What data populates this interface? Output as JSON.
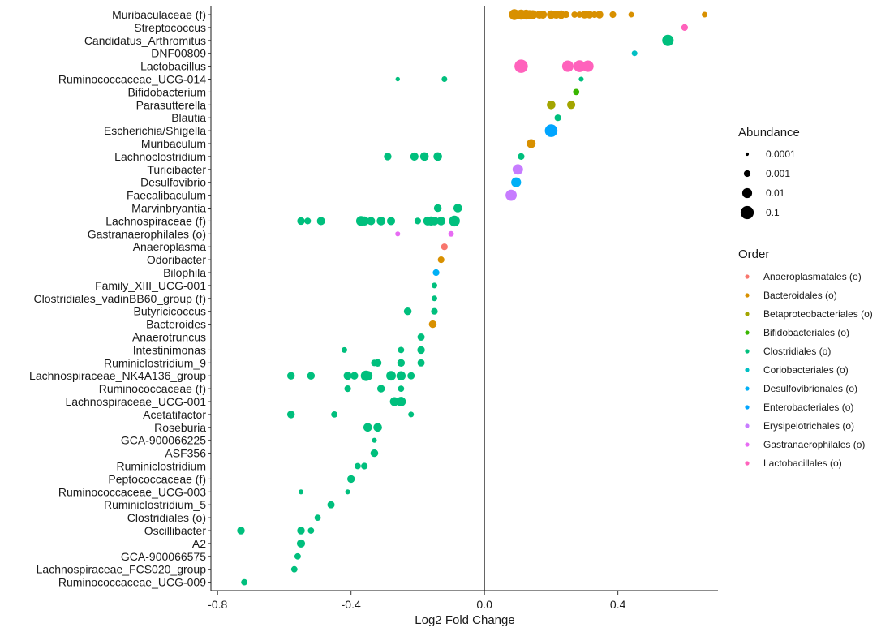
{
  "chart_data": {
    "type": "scatter",
    "xlabel": "Log2 Fold Change",
    "ylabel": "",
    "xlim": [
      -0.82,
      0.7
    ],
    "xticks": [
      "-0.8",
      "-0.4",
      "0.0",
      "0.4"
    ],
    "xtick_values": [
      -0.8,
      -0.4,
      0.0,
      0.4
    ],
    "vline_x": 0,
    "grid": false,
    "legend_position": "right",
    "categories": [
      "Muribaculaceae (f)",
      "Streptococcus",
      "Candidatus_Arthromitus",
      "DNF00809",
      "Lactobacillus",
      "Ruminococcaceae_UCG-014",
      "Bifidobacterium",
      "Parasutterella",
      "Blautia",
      "Escherichia/Shigella",
      "Muribaculum",
      "Lachnoclostridium",
      "Turicibacter",
      "Desulfovibrio",
      "Faecalibaculum",
      "Marvinbryantia",
      "Lachnospiraceae (f)",
      "Gastranaerophilales (o)",
      "Anaeroplasma",
      "Odoribacter",
      "Bilophila",
      "Family_XIII_UCG-001",
      "Clostridiales_vadinBB60_group (f)",
      "Butyricicoccus",
      "Bacteroides",
      "Anaerotruncus",
      "Intestinimonas",
      "Ruminiclostridium_9",
      "Lachnospiraceae_NK4A136_group",
      "Ruminococcaceae (f)",
      "Lachnospiraceae_UCG-001",
      "Acetatifactor",
      "Roseburia",
      "GCA-900066225",
      "ASF356",
      "Ruminiclostridium",
      "Peptococcaceae (f)",
      "Ruminococcaceae_UCG-003",
      "Ruminiclostridium_5",
      "Clostridiales (o)",
      "Oscillibacter",
      "A2",
      "GCA-900066575",
      "Lachnospiraceae_FCS020_group",
      "Ruminococcaceae_UCG-009"
    ],
    "orders": [
      {
        "name": "Anaeroplasmatales (o)",
        "color": "#F8766D"
      },
      {
        "name": "Bacteroidales (o)",
        "color": "#D89000"
      },
      {
        "name": "Betaproteobacteriales (o)",
        "color": "#A3A500"
      },
      {
        "name": "Bifidobacteriales (o)",
        "color": "#39B600"
      },
      {
        "name": "Clostridiales (o)",
        "color": "#00BF7D"
      },
      {
        "name": "Coriobacteriales (o)",
        "color": "#00BFC4"
      },
      {
        "name": "Desulfovibrionales (o)",
        "color": "#00B0F6"
      },
      {
        "name": "Enterobacteriales (o)",
        "color": "#00A5FF"
      },
      {
        "name": "Erysipelotrichales (o)",
        "color": "#C77CFF"
      },
      {
        "name": "Gastranaerophilales (o)",
        "color": "#E76BF3"
      },
      {
        "name": "Lactobacillales (o)",
        "color": "#FF62BC"
      }
    ],
    "abundance_legend": [
      {
        "label": "0.0001",
        "value": 0.0001
      },
      {
        "label": "0.001",
        "value": 0.001
      },
      {
        "label": "0.01",
        "value": 0.01
      },
      {
        "label": "0.1",
        "value": 0.1
      }
    ],
    "points": [
      {
        "c": 0,
        "x": 0.09,
        "o": 1,
        "a": 0.02
      },
      {
        "c": 0,
        "x": 0.11,
        "o": 1,
        "a": 0.012
      },
      {
        "c": 0,
        "x": 0.125,
        "o": 1,
        "a": 0.01
      },
      {
        "c": 0,
        "x": 0.135,
        "o": 1,
        "a": 0.006
      },
      {
        "c": 0,
        "x": 0.145,
        "o": 1,
        "a": 0.005
      },
      {
        "c": 0,
        "x": 0.165,
        "o": 1,
        "a": 0.003
      },
      {
        "c": 0,
        "x": 0.175,
        "o": 1,
        "a": 0.003
      },
      {
        "c": 0,
        "x": 0.2,
        "o": 1,
        "a": 0.004
      },
      {
        "c": 0,
        "x": 0.215,
        "o": 1,
        "a": 0.003
      },
      {
        "c": 0,
        "x": 0.23,
        "o": 1,
        "a": 0.004
      },
      {
        "c": 0,
        "x": 0.245,
        "o": 1,
        "a": 0.001
      },
      {
        "c": 0,
        "x": 0.27,
        "o": 1,
        "a": 0.0008
      },
      {
        "c": 0,
        "x": 0.285,
        "o": 1,
        "a": 0.0008
      },
      {
        "c": 0,
        "x": 0.3,
        "o": 1,
        "a": 0.002
      },
      {
        "c": 0,
        "x": 0.315,
        "o": 1,
        "a": 0.002
      },
      {
        "c": 0,
        "x": 0.33,
        "o": 1,
        "a": 0.001
      },
      {
        "c": 0,
        "x": 0.345,
        "o": 1,
        "a": 0.002
      },
      {
        "c": 0,
        "x": 0.385,
        "o": 1,
        "a": 0.001
      },
      {
        "c": 0,
        "x": 0.44,
        "o": 1,
        "a": 0.0005
      },
      {
        "c": 0,
        "x": 0.66,
        "o": 1,
        "a": 0.0005
      },
      {
        "c": 1,
        "x": 0.6,
        "o": 10,
        "a": 0.001
      },
      {
        "c": 2,
        "x": 0.55,
        "o": 4,
        "a": 0.03
      },
      {
        "c": 3,
        "x": 0.45,
        "o": 5,
        "a": 0.0005
      },
      {
        "c": 4,
        "x": 0.11,
        "o": 10,
        "a": 0.12
      },
      {
        "c": 4,
        "x": 0.25,
        "o": 10,
        "a": 0.03
      },
      {
        "c": 4,
        "x": 0.285,
        "o": 10,
        "a": 0.04
      },
      {
        "c": 4,
        "x": 0.31,
        "o": 10,
        "a": 0.03
      },
      {
        "c": 5,
        "x": -0.26,
        "o": 4,
        "a": 0.0002
      },
      {
        "c": 5,
        "x": -0.12,
        "o": 4,
        "a": 0.0005
      },
      {
        "c": 5,
        "x": 0.29,
        "o": 4,
        "a": 0.0003
      },
      {
        "c": 6,
        "x": 0.275,
        "o": 3,
        "a": 0.0008
      },
      {
        "c": 7,
        "x": 0.2,
        "o": 2,
        "a": 0.004
      },
      {
        "c": 7,
        "x": 0.26,
        "o": 2,
        "a": 0.003
      },
      {
        "c": 8,
        "x": 0.22,
        "o": 4,
        "a": 0.001
      },
      {
        "c": 9,
        "x": 0.2,
        "o": 7,
        "a": 0.07
      },
      {
        "c": 10,
        "x": 0.14,
        "o": 1,
        "a": 0.005
      },
      {
        "c": 11,
        "x": -0.29,
        "o": 4,
        "a": 0.002
      },
      {
        "c": 11,
        "x": -0.21,
        "o": 4,
        "a": 0.003
      },
      {
        "c": 11,
        "x": -0.18,
        "o": 4,
        "a": 0.004
      },
      {
        "c": 11,
        "x": -0.14,
        "o": 4,
        "a": 0.004
      },
      {
        "c": 11,
        "x": 0.11,
        "o": 4,
        "a": 0.001
      },
      {
        "c": 12,
        "x": 0.1,
        "o": 8,
        "a": 0.015
      },
      {
        "c": 13,
        "x": 0.095,
        "o": 6,
        "a": 0.01
      },
      {
        "c": 14,
        "x": 0.08,
        "o": 8,
        "a": 0.025
      },
      {
        "c": 15,
        "x": -0.14,
        "o": 4,
        "a": 0.002
      },
      {
        "c": 15,
        "x": -0.08,
        "o": 4,
        "a": 0.004
      },
      {
        "c": 16,
        "x": -0.55,
        "o": 4,
        "a": 0.002
      },
      {
        "c": 16,
        "x": -0.53,
        "o": 4,
        "a": 0.001
      },
      {
        "c": 16,
        "x": -0.49,
        "o": 4,
        "a": 0.003
      },
      {
        "c": 16,
        "x": -0.37,
        "o": 4,
        "a": 0.01
      },
      {
        "c": 16,
        "x": -0.36,
        "o": 4,
        "a": 0.006
      },
      {
        "c": 16,
        "x": -0.34,
        "o": 4,
        "a": 0.003
      },
      {
        "c": 16,
        "x": -0.31,
        "o": 4,
        "a": 0.004
      },
      {
        "c": 16,
        "x": -0.28,
        "o": 4,
        "a": 0.003
      },
      {
        "c": 16,
        "x": -0.2,
        "o": 4,
        "a": 0.001
      },
      {
        "c": 16,
        "x": -0.17,
        "o": 4,
        "a": 0.005
      },
      {
        "c": 16,
        "x": -0.16,
        "o": 4,
        "a": 0.006
      },
      {
        "c": 16,
        "x": -0.15,
        "o": 4,
        "a": 0.004
      },
      {
        "c": 16,
        "x": -0.13,
        "o": 4,
        "a": 0.004
      },
      {
        "c": 16,
        "x": -0.09,
        "o": 4,
        "a": 0.02
      },
      {
        "c": 17,
        "x": -0.26,
        "o": 9,
        "a": 0.0003
      },
      {
        "c": 17,
        "x": -0.1,
        "o": 9,
        "a": 0.0005
      },
      {
        "c": 18,
        "x": -0.12,
        "o": 0,
        "a": 0.001
      },
      {
        "c": 19,
        "x": -0.13,
        "o": 1,
        "a": 0.001
      },
      {
        "c": 20,
        "x": -0.145,
        "o": 6,
        "a": 0.001
      },
      {
        "c": 21,
        "x": -0.15,
        "o": 4,
        "a": 0.0005
      },
      {
        "c": 22,
        "x": -0.15,
        "o": 4,
        "a": 0.0005
      },
      {
        "c": 23,
        "x": -0.23,
        "o": 4,
        "a": 0.002
      },
      {
        "c": 23,
        "x": -0.15,
        "o": 4,
        "a": 0.001
      },
      {
        "c": 24,
        "x": -0.155,
        "o": 1,
        "a": 0.002
      },
      {
        "c": 25,
        "x": -0.19,
        "o": 4,
        "a": 0.0015
      },
      {
        "c": 26,
        "x": -0.42,
        "o": 4,
        "a": 0.0005
      },
      {
        "c": 26,
        "x": -0.25,
        "o": 4,
        "a": 0.0008
      },
      {
        "c": 26,
        "x": -0.19,
        "o": 4,
        "a": 0.002
      },
      {
        "c": 27,
        "x": -0.33,
        "o": 4,
        "a": 0.001
      },
      {
        "c": 27,
        "x": -0.32,
        "o": 4,
        "a": 0.002
      },
      {
        "c": 27,
        "x": -0.25,
        "o": 4,
        "a": 0.002
      },
      {
        "c": 27,
        "x": -0.19,
        "o": 4,
        "a": 0.0015
      },
      {
        "c": 28,
        "x": -0.58,
        "o": 4,
        "a": 0.002
      },
      {
        "c": 28,
        "x": -0.52,
        "o": 4,
        "a": 0.002
      },
      {
        "c": 28,
        "x": -0.41,
        "o": 4,
        "a": 0.003
      },
      {
        "c": 28,
        "x": -0.39,
        "o": 4,
        "a": 0.002
      },
      {
        "c": 28,
        "x": -0.355,
        "o": 4,
        "a": 0.015
      },
      {
        "c": 28,
        "x": -0.35,
        "o": 4,
        "a": 0.008
      },
      {
        "c": 28,
        "x": -0.28,
        "o": 4,
        "a": 0.008
      },
      {
        "c": 28,
        "x": -0.25,
        "o": 4,
        "a": 0.006
      },
      {
        "c": 28,
        "x": -0.22,
        "o": 4,
        "a": 0.0015
      },
      {
        "c": 29,
        "x": -0.41,
        "o": 4,
        "a": 0.001
      },
      {
        "c": 29,
        "x": -0.31,
        "o": 4,
        "a": 0.002
      },
      {
        "c": 29,
        "x": -0.25,
        "o": 4,
        "a": 0.0008
      },
      {
        "c": 30,
        "x": -0.27,
        "o": 4,
        "a": 0.005
      },
      {
        "c": 30,
        "x": -0.25,
        "o": 4,
        "a": 0.008
      },
      {
        "c": 31,
        "x": -0.58,
        "o": 4,
        "a": 0.002
      },
      {
        "c": 31,
        "x": -0.45,
        "o": 4,
        "a": 0.0008
      },
      {
        "c": 31,
        "x": -0.22,
        "o": 4,
        "a": 0.0005
      },
      {
        "c": 32,
        "x": -0.35,
        "o": 4,
        "a": 0.004
      },
      {
        "c": 32,
        "x": -0.32,
        "o": 4,
        "a": 0.004
      },
      {
        "c": 33,
        "x": -0.33,
        "o": 4,
        "a": 0.0003
      },
      {
        "c": 34,
        "x": -0.33,
        "o": 4,
        "a": 0.002
      },
      {
        "c": 35,
        "x": -0.38,
        "o": 4,
        "a": 0.0008
      },
      {
        "c": 35,
        "x": -0.36,
        "o": 4,
        "a": 0.001
      },
      {
        "c": 36,
        "x": -0.4,
        "o": 4,
        "a": 0.002
      },
      {
        "c": 37,
        "x": -0.55,
        "o": 4,
        "a": 0.0003
      },
      {
        "c": 37,
        "x": -0.41,
        "o": 4,
        "a": 0.0003
      },
      {
        "c": 38,
        "x": -0.46,
        "o": 4,
        "a": 0.0015
      },
      {
        "c": 39,
        "x": -0.5,
        "o": 4,
        "a": 0.0008
      },
      {
        "c": 40,
        "x": -0.73,
        "o": 4,
        "a": 0.002
      },
      {
        "c": 40,
        "x": -0.55,
        "o": 4,
        "a": 0.002
      },
      {
        "c": 40,
        "x": -0.52,
        "o": 4,
        "a": 0.0008
      },
      {
        "c": 41,
        "x": -0.55,
        "o": 4,
        "a": 0.003
      },
      {
        "c": 42,
        "x": -0.56,
        "o": 4,
        "a": 0.0008
      },
      {
        "c": 43,
        "x": -0.57,
        "o": 4,
        "a": 0.0008
      },
      {
        "c": 44,
        "x": -0.72,
        "o": 4,
        "a": 0.0008
      }
    ],
    "legend_titles": {
      "abundance": "Abundance",
      "order": "Order"
    }
  }
}
